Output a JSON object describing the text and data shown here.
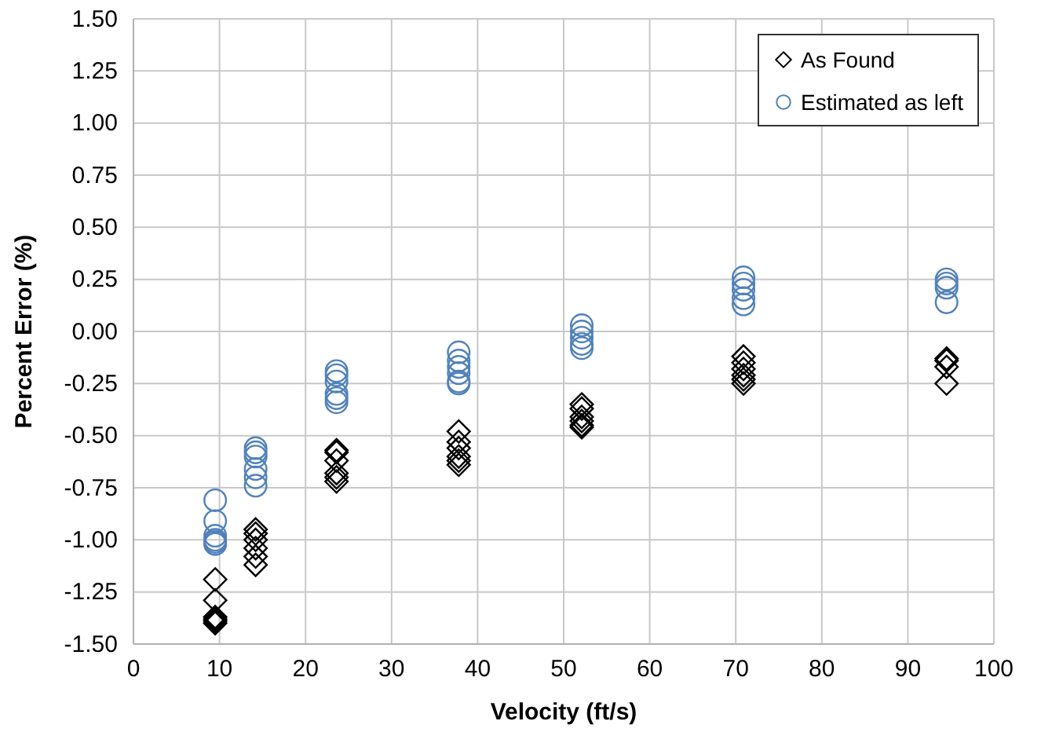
{
  "chart_data": {
    "type": "scatter",
    "xlabel": "Velocity (ft/s)",
    "ylabel": "Percent Error (%)",
    "xlim": [
      0,
      100
    ],
    "xticks": [
      0,
      10,
      20,
      30,
      40,
      50,
      60,
      70,
      80,
      90,
      100
    ],
    "ylim": [
      -1.5,
      1.5
    ],
    "yticks": [
      {
        "value": -1.5,
        "label": "-1.50"
      },
      {
        "value": -1.25,
        "label": "-1.25"
      },
      {
        "value": -1,
        "label": "-1.00"
      },
      {
        "value": -0.75,
        "label": "-0.75"
      },
      {
        "value": -0.5,
        "label": "-0.50"
      },
      {
        "value": -0.25,
        "label": "-0.25"
      },
      {
        "value": 0,
        "label": "0.00"
      },
      {
        "value": 0.25,
        "label": "0.25"
      },
      {
        "value": 0.5,
        "label": "0.50"
      },
      {
        "value": 0.75,
        "label": "0.75"
      },
      {
        "value": 1,
        "label": "1.00"
      },
      {
        "value": 1.25,
        "label": "1.25"
      },
      {
        "value": 1.5,
        "label": "1.50"
      }
    ],
    "grid": true,
    "legend": "top right",
    "series": [
      {
        "name": "As Found",
        "color": "#000000",
        "marker": "diamond",
        "x": [
          9.5,
          9.5,
          9.5,
          9.5,
          9.5,
          9.5,
          14.2,
          14.2,
          14.2,
          14.2,
          14.2,
          14.2,
          23.6,
          23.6,
          23.6,
          23.6,
          23.6,
          23.6,
          37.8,
          37.8,
          37.8,
          37.8,
          37.8,
          37.8,
          52.1,
          52.1,
          52.1,
          52.1,
          52.1,
          52.1,
          70.9,
          70.9,
          70.9,
          70.9,
          70.9,
          70.9,
          94.5,
          94.5,
          94.5,
          94.5
        ],
        "values": [
          -1.19,
          -1.29,
          -1.37,
          -1.38,
          -1.39,
          -1.4,
          -0.95,
          -0.97,
          -1.0,
          -1.04,
          -1.08,
          -1.12,
          -0.57,
          -0.58,
          -0.62,
          -0.68,
          -0.7,
          -0.72,
          -0.48,
          -0.53,
          -0.56,
          -0.6,
          -0.62,
          -0.64,
          -0.35,
          -0.37,
          -0.41,
          -0.43,
          -0.45,
          -0.46,
          -0.12,
          -0.15,
          -0.18,
          -0.21,
          -0.23,
          -0.25,
          -0.13,
          -0.14,
          -0.17,
          -0.25
        ]
      },
      {
        "name": "Estimated as left",
        "color": "#4f81bd",
        "marker": "circle",
        "x": [
          9.5,
          9.5,
          9.5,
          9.5,
          9.5,
          9.5,
          14.2,
          14.2,
          14.2,
          14.2,
          14.2,
          14.2,
          23.6,
          23.6,
          23.6,
          23.6,
          23.6,
          23.6,
          37.8,
          37.8,
          37.8,
          37.8,
          37.8,
          37.8,
          52.1,
          52.1,
          52.1,
          52.1,
          52.1,
          70.9,
          70.9,
          70.9,
          70.9,
          70.9,
          94.5,
          94.5,
          94.5,
          94.5
        ],
        "values": [
          -0.81,
          -0.91,
          -0.98,
          -1.0,
          -1.01,
          -1.02,
          -0.56,
          -0.58,
          -0.6,
          -0.66,
          -0.7,
          -0.74,
          -0.19,
          -0.21,
          -0.24,
          -0.3,
          -0.32,
          -0.34,
          -0.1,
          -0.14,
          -0.17,
          -0.2,
          -0.24,
          -0.25,
          0.03,
          0.0,
          -0.03,
          -0.06,
          -0.08,
          0.26,
          0.23,
          0.2,
          0.16,
          0.13,
          0.25,
          0.23,
          0.21,
          0.14
        ]
      }
    ]
  }
}
